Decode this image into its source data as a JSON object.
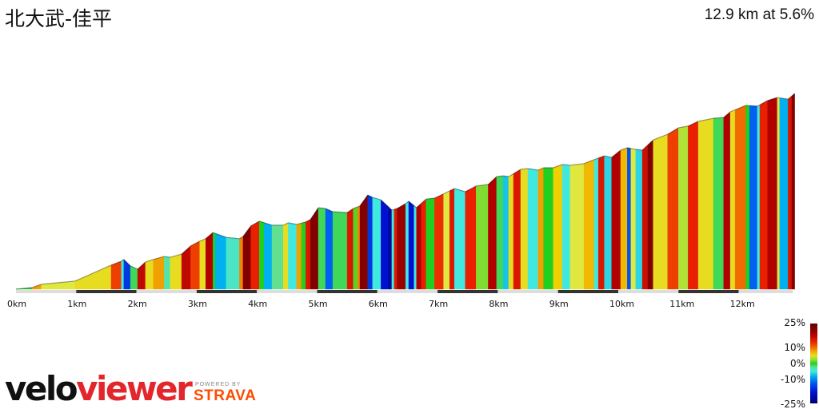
{
  "title": "北大武-佳平",
  "summary": "12.9 km at 5.6%",
  "logo": {
    "part1": "velo",
    "part2": "viewer",
    "powered_by": "POWERED BY",
    "strava": "STRAVA"
  },
  "colors": {
    "logo_red": "#e3262b",
    "strava_orange": "#fc4c02"
  },
  "chart_data": {
    "type": "area",
    "description_of_encoding": "elevation profile; fill color by gradient %",
    "x_unit": "km",
    "x_ticks": [
      "0km",
      "1km",
      "2km",
      "3km",
      "4km",
      "5km",
      "6km",
      "7km",
      "8km",
      "9km",
      "10km",
      "11km",
      "12km"
    ],
    "total_km": 12.9,
    "avg_grade_pct": 5.6,
    "legend": {
      "labels": [
        "25%",
        "10%",
        "0%",
        "-10%",
        "-25%"
      ],
      "values": [
        25,
        10,
        0,
        -10,
        -25
      ]
    },
    "colorscale": [
      [
        -25,
        "#000070"
      ],
      [
        -18,
        "#0010d0"
      ],
      [
        -12,
        "#0060f0"
      ],
      [
        -8,
        "#00b0f0"
      ],
      [
        -5,
        "#40e8e0"
      ],
      [
        -2,
        "#60e090"
      ],
      [
        0,
        "#20d020"
      ],
      [
        4,
        "#e0e840"
      ],
      [
        6,
        "#f0d000"
      ],
      [
        8,
        "#f0a000"
      ],
      [
        11,
        "#f05000"
      ],
      [
        14,
        "#e82000"
      ],
      [
        18,
        "#b00000"
      ],
      [
        25,
        "#600000"
      ]
    ],
    "segments_end_km_grade": [
      [
        0.27,
        0
      ],
      [
        0.42,
        8
      ],
      [
        0.98,
        4
      ],
      [
        1.58,
        5
      ],
      [
        1.75,
        12
      ],
      [
        1.79,
        -5
      ],
      [
        1.9,
        -15
      ],
      [
        2.02,
        -1
      ],
      [
        2.15,
        17
      ],
      [
        2.28,
        5
      ],
      [
        2.46,
        8
      ],
      [
        2.56,
        -3
      ],
      [
        2.75,
        5
      ],
      [
        2.9,
        17
      ],
      [
        3.05,
        12
      ],
      [
        3.15,
        5
      ],
      [
        3.27,
        18
      ],
      [
        3.31,
        0
      ],
      [
        3.49,
        -8
      ],
      [
        3.71,
        -4
      ],
      [
        3.77,
        9
      ],
      [
        3.9,
        22
      ],
      [
        4.04,
        14
      ],
      [
        4.12,
        0
      ],
      [
        4.25,
        -8
      ],
      [
        4.44,
        -2
      ],
      [
        4.52,
        5
      ],
      [
        4.66,
        -5
      ],
      [
        4.74,
        8
      ],
      [
        4.81,
        0
      ],
      [
        4.89,
        15
      ],
      [
        5.02,
        22
      ],
      [
        5.14,
        -1
      ],
      [
        5.26,
        -12
      ],
      [
        5.5,
        -1
      ],
      [
        5.6,
        15
      ],
      [
        5.67,
        1
      ],
      [
        5.71,
        9
      ],
      [
        5.84,
        22
      ],
      [
        5.92,
        -15
      ],
      [
        6.06,
        -5
      ],
      [
        6.18,
        -18
      ],
      [
        6.24,
        -22
      ],
      [
        6.28,
        -5
      ],
      [
        6.33,
        15
      ],
      [
        6.47,
        20
      ],
      [
        6.52,
        -5
      ],
      [
        6.61,
        -18
      ],
      [
        6.65,
        -5
      ],
      [
        6.73,
        18
      ],
      [
        6.81,
        14
      ],
      [
        6.95,
        0
      ],
      [
        7.1,
        13
      ],
      [
        7.2,
        4
      ],
      [
        7.28,
        15
      ],
      [
        7.46,
        -5
      ],
      [
        7.64,
        14
      ],
      [
        7.84,
        2
      ],
      [
        7.98,
        18
      ],
      [
        8.09,
        -1
      ],
      [
        8.18,
        -7
      ],
      [
        8.26,
        5
      ],
      [
        8.38,
        15
      ],
      [
        8.5,
        5
      ],
      [
        8.67,
        -5
      ],
      [
        8.76,
        8
      ],
      [
        8.92,
        0
      ],
      [
        9.07,
        6
      ],
      [
        9.2,
        -5
      ],
      [
        9.43,
        4
      ],
      [
        9.6,
        7
      ],
      [
        9.67,
        -5
      ],
      [
        9.77,
        15
      ],
      [
        9.89,
        -6
      ],
      [
        10.04,
        18
      ],
      [
        10.15,
        7
      ],
      [
        10.21,
        -13
      ],
      [
        10.29,
        4
      ],
      [
        10.4,
        -6
      ],
      [
        10.49,
        16
      ],
      [
        10.58,
        22
      ],
      [
        10.82,
        5
      ],
      [
        11.0,
        12
      ],
      [
        11.16,
        3
      ],
      [
        11.33,
        14
      ],
      [
        11.58,
        5
      ],
      [
        11.75,
        -1
      ],
      [
        11.86,
        18
      ],
      [
        11.94,
        5
      ],
      [
        12.12,
        10
      ],
      [
        12.18,
        0
      ],
      [
        12.31,
        -12
      ],
      [
        12.35,
        -5
      ],
      [
        12.48,
        14
      ],
      [
        12.64,
        18
      ],
      [
        12.68,
        4
      ],
      [
        12.82,
        -8
      ],
      [
        12.88,
        15
      ],
      [
        12.93,
        22
      ]
    ],
    "profile_km_gain_m": [
      [
        0,
        0
      ],
      [
        0.27,
        6
      ],
      [
        0.42,
        18
      ],
      [
        0.98,
        30
      ],
      [
        1.58,
        89
      ],
      [
        1.75,
        104
      ],
      [
        1.79,
        110
      ],
      [
        1.9,
        86
      ],
      [
        2.02,
        74
      ],
      [
        2.15,
        101
      ],
      [
        2.28,
        110
      ],
      [
        2.46,
        121
      ],
      [
        2.56,
        118
      ],
      [
        2.75,
        130
      ],
      [
        2.9,
        160
      ],
      [
        3.05,
        178
      ],
      [
        3.15,
        187
      ],
      [
        3.27,
        210
      ],
      [
        3.49,
        192
      ],
      [
        3.71,
        187
      ],
      [
        3.77,
        195
      ],
      [
        3.9,
        234
      ],
      [
        4.04,
        252
      ],
      [
        4.25,
        237
      ],
      [
        4.44,
        237
      ],
      [
        4.52,
        246
      ],
      [
        4.66,
        240
      ],
      [
        4.81,
        249
      ],
      [
        4.89,
        258
      ],
      [
        5.02,
        302
      ],
      [
        5.14,
        299
      ],
      [
        5.26,
        287
      ],
      [
        5.5,
        284
      ],
      [
        5.6,
        299
      ],
      [
        5.71,
        308
      ],
      [
        5.84,
        349
      ],
      [
        5.92,
        340
      ],
      [
        6.06,
        331
      ],
      [
        6.24,
        293
      ],
      [
        6.33,
        299
      ],
      [
        6.47,
        317
      ],
      [
        6.52,
        326
      ],
      [
        6.65,
        302
      ],
      [
        6.81,
        334
      ],
      [
        6.95,
        337
      ],
      [
        7.2,
        364
      ],
      [
        7.28,
        373
      ],
      [
        7.46,
        361
      ],
      [
        7.64,
        382
      ],
      [
        7.84,
        388
      ],
      [
        7.98,
        417
      ],
      [
        8.09,
        420
      ],
      [
        8.18,
        417
      ],
      [
        8.38,
        444
      ],
      [
        8.5,
        447
      ],
      [
        8.67,
        441
      ],
      [
        8.76,
        450
      ],
      [
        8.92,
        450
      ],
      [
        9.07,
        462
      ],
      [
        9.2,
        459
      ],
      [
        9.43,
        465
      ],
      [
        9.6,
        480
      ],
      [
        9.77,
        494
      ],
      [
        9.89,
        488
      ],
      [
        10.04,
        515
      ],
      [
        10.15,
        524
      ],
      [
        10.29,
        518
      ],
      [
        10.4,
        515
      ],
      [
        10.58,
        553
      ],
      [
        10.82,
        574
      ],
      [
        11.0,
        598
      ],
      [
        11.16,
        604
      ],
      [
        11.33,
        622
      ],
      [
        11.58,
        633
      ],
      [
        11.75,
        636
      ],
      [
        11.86,
        657
      ],
      [
        12.12,
        681
      ],
      [
        12.31,
        678
      ],
      [
        12.48,
        699
      ],
      [
        12.64,
        710
      ],
      [
        12.82,
        704
      ],
      [
        12.93,
        725
      ]
    ]
  }
}
